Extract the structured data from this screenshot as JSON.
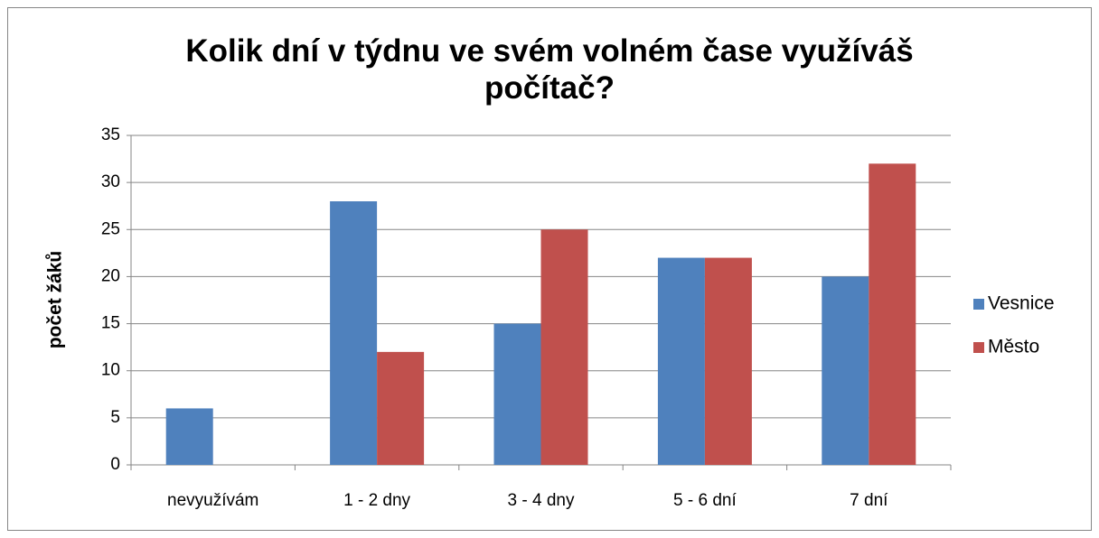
{
  "chart_data": {
    "type": "bar",
    "title": "Kolik dní v týdnu ve svém volném čase využíváš počítač?",
    "y_label": "počet žáků",
    "categories": [
      "nevyužívám",
      "1 - 2 dny",
      "3 - 4 dny",
      "5 - 6 dní",
      "7 dní"
    ],
    "series": [
      {
        "name": "Vesnice",
        "color": "#4f81bd",
        "values": [
          6,
          28,
          15,
          22,
          20
        ]
      },
      {
        "name": "Město",
        "color": "#c0504d",
        "values": [
          0,
          12,
          25,
          22,
          32
        ]
      }
    ],
    "ylim": [
      0,
      35
    ],
    "yticks": [
      0,
      5,
      10,
      15,
      20,
      25,
      30,
      35
    ],
    "grid": true,
    "legend": "right"
  }
}
